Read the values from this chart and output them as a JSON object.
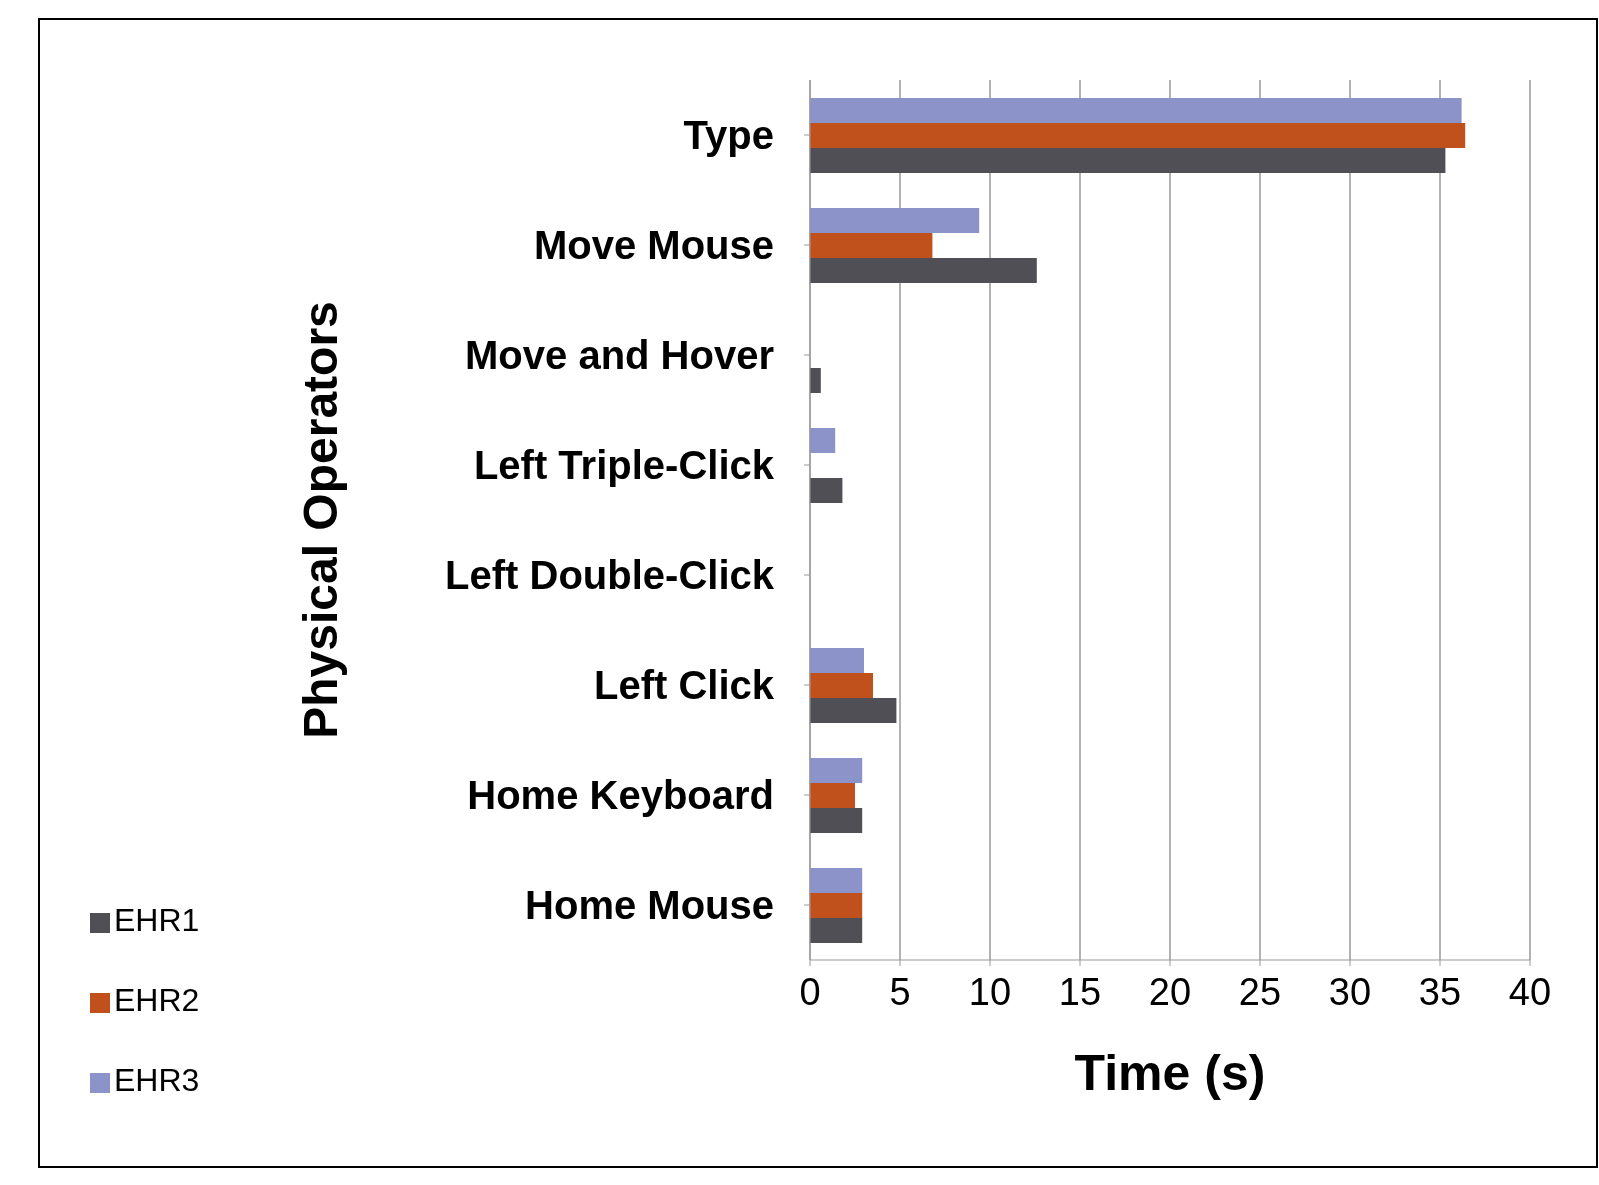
{
  "chart_data": {
    "type": "bar",
    "orientation": "horizontal",
    "xlabel": "Time (s)",
    "ylabel": "Physical Operators",
    "categories": [
      "Type",
      "Move Mouse",
      "Move and Hover",
      "Left Triple-Click",
      "Left Double-Click",
      "Left Click",
      "Home Keyboard",
      "Home Mouse"
    ],
    "series": [
      {
        "name": "EHR3",
        "color": "#8b93c8",
        "values": [
          36.2,
          9.4,
          null,
          1.4,
          null,
          3.0,
          2.9,
          2.9
        ]
      },
      {
        "name": "EHR2",
        "color": "#c0501c",
        "values": [
          36.4,
          6.8,
          null,
          null,
          null,
          3.5,
          2.5,
          2.9
        ]
      },
      {
        "name": "EHR1",
        "color": "#4f4f55",
        "values": [
          35.3,
          12.6,
          0.6,
          1.8,
          null,
          4.8,
          2.9,
          2.9
        ]
      }
    ],
    "xlim": [
      0,
      40
    ],
    "xticks": [
      0,
      5,
      10,
      15,
      20,
      25,
      30,
      35,
      40
    ],
    "grid": "x",
    "legend": "bottom left"
  }
}
